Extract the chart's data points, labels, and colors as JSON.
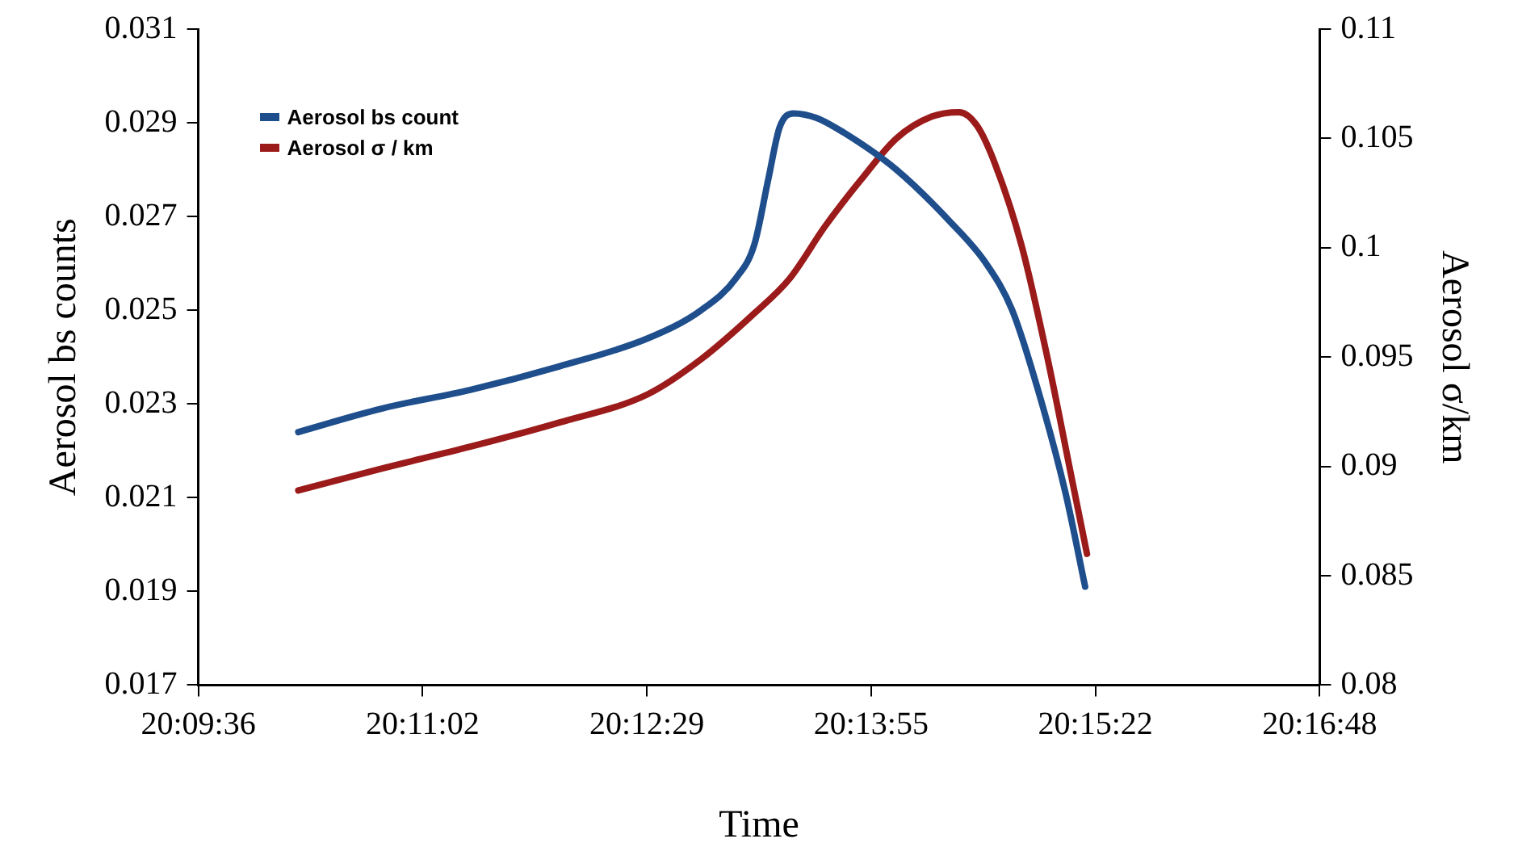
{
  "chart_data": {
    "type": "line",
    "xlabel": "Time",
    "ylabel": "Aerosol bs counts",
    "y2label": "Aerosol σ/km",
    "xlim": [
      20.16,
      20.28
    ],
    "xticks": [
      {
        "value": 20.16,
        "label": "20:09:36"
      },
      {
        "value": 20.184,
        "label": "20:11:02"
      },
      {
        "value": 20.208,
        "label": "20:12:29"
      },
      {
        "value": 20.232,
        "label": "20:13:55"
      },
      {
        "value": 20.256,
        "label": "20:15:22"
      },
      {
        "value": 20.28,
        "label": "20:16:48"
      }
    ],
    "ylim": [
      0.017,
      0.031
    ],
    "yticks": [
      0.017,
      0.019,
      0.021,
      0.023,
      0.025,
      0.027,
      0.029,
      0.031
    ],
    "y2lim": [
      0.08,
      0.11
    ],
    "y2ticks": [
      0.08,
      0.085,
      0.09,
      0.095,
      0.1,
      0.105,
      0.11
    ],
    "grid": false,
    "legend": "top left",
    "marker": "none",
    "line_style": "solid",
    "series": [
      {
        "name": "Aerosol bs count",
        "color": "#1f4e8c",
        "x": [
          20.1707,
          20.1796,
          20.1891,
          20.1986,
          20.2081,
          20.2138,
          20.2176,
          20.2195,
          20.221,
          20.2222,
          20.2237,
          20.2262,
          20.229,
          20.2347,
          20.2404,
          20.2443,
          20.2471,
          20.25,
          20.2528,
          20.2549
        ],
        "values": [
          0.0224,
          0.0229,
          0.0233,
          0.0238,
          0.0244,
          0.025,
          0.0257,
          0.0264,
          0.0278,
          0.0289,
          0.0292,
          0.0291,
          0.0288,
          0.028,
          0.0269,
          0.026,
          0.025,
          0.0232,
          0.0211,
          0.0191
        ]
      },
      {
        "name": "Aerosol σ / km",
        "color": "#9b1b1b",
        "axis": "y2",
        "x": [
          20.1707,
          20.1796,
          20.1891,
          20.1986,
          20.2081,
          20.2138,
          20.2195,
          20.2233,
          20.2271,
          20.2309,
          20.2347,
          20.2385,
          20.2414,
          20.2433,
          20.2452,
          20.2481,
          20.2509,
          20.2534,
          20.2551
        ],
        "values": [
          0.0889,
          0.0899,
          0.0909,
          0.092,
          0.0933,
          0.0949,
          0.097,
          0.0986,
          0.101,
          0.1031,
          0.105,
          0.106,
          0.1062,
          0.1056,
          0.1039,
          0.1001,
          0.0949,
          0.0896,
          0.086
        ]
      }
    ]
  }
}
